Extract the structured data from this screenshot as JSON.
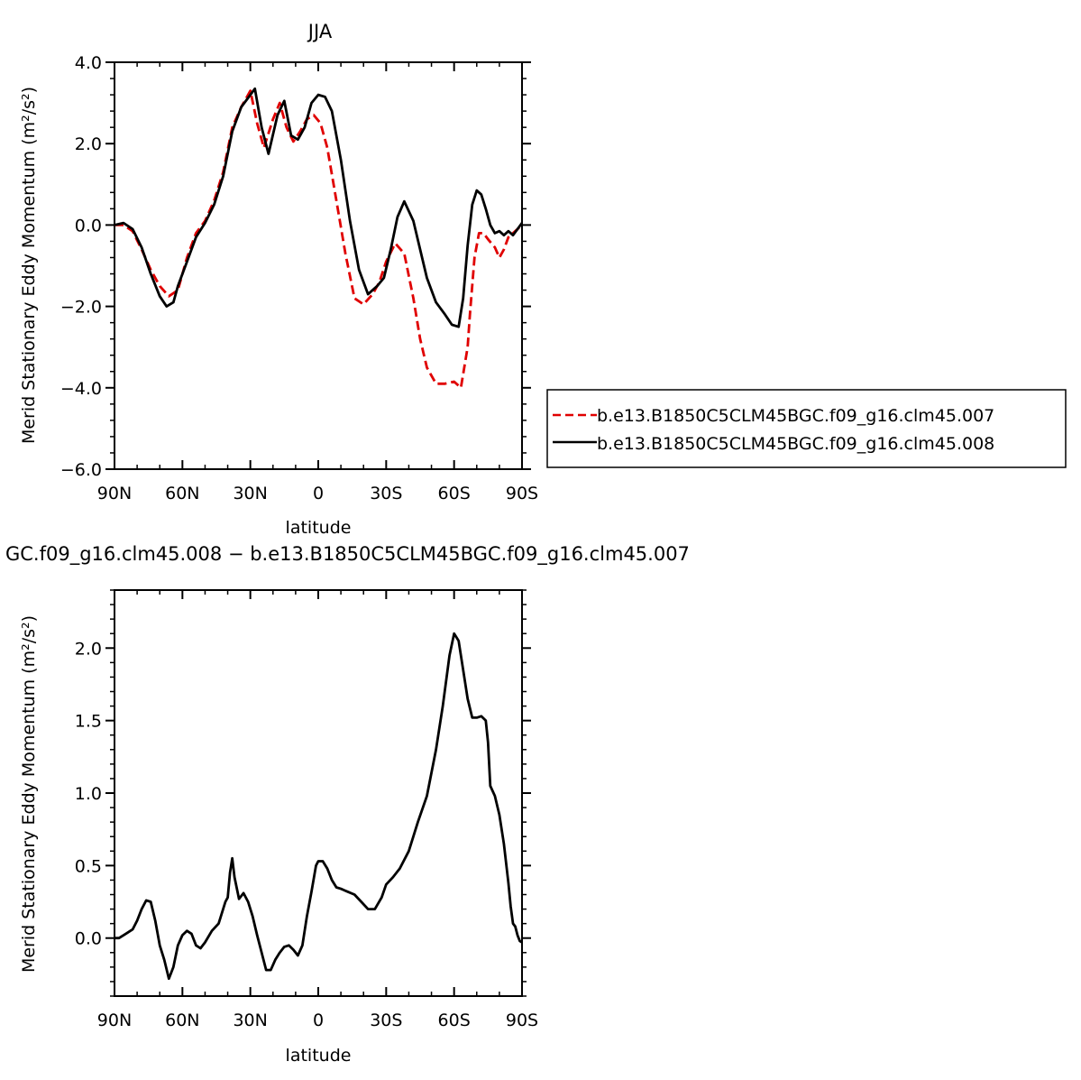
{
  "chart_data": [
    {
      "type": "line",
      "title": "JJA",
      "xlabel": "latitude",
      "ylabel": "Merid Stationary Eddy Momentum",
      "ylabel_unit": "(m²/s²)",
      "xlim": [
        90,
        -90
      ],
      "ylim": [
        -6.0,
        4.0
      ],
      "x_ticks": [
        90,
        60,
        30,
        0,
        -30,
        -60,
        -90
      ],
      "x_tick_labels": [
        "90N",
        "60N",
        "30N",
        "0",
        "30S",
        "60S",
        "90S"
      ],
      "y_ticks": [
        -6.0,
        -4.0,
        -2.0,
        0.0,
        2.0,
        4.0
      ],
      "y_tick_labels": [
        "−6.0",
        "−4.0",
        "−2.0",
        "0.0",
        "2.0",
        "4.0"
      ],
      "grid": false,
      "legend_position": "right",
      "series": [
        {
          "name": "b.e13.B1850C5CLM45BGC.f09_g16.clm45.007",
          "color": "#e00000",
          "style": "dashed",
          "x": [
            90,
            86,
            82,
            78,
            74,
            70,
            66,
            62,
            58,
            54,
            50,
            46,
            42,
            38,
            34,
            30,
            27,
            24,
            20,
            17,
            14,
            11,
            8,
            5,
            2,
            -1,
            -4,
            -8,
            -12,
            -16,
            -20,
            -24,
            -27,
            -30,
            -34,
            -38,
            -42,
            -45,
            -48,
            -52,
            -56,
            -60,
            -63,
            -66,
            -67,
            -69,
            -71,
            -73,
            -75,
            -78,
            -80,
            -82,
            -84,
            -86,
            -88,
            -90
          ],
          "y": [
            0.0,
            0.0,
            -0.15,
            -0.6,
            -1.1,
            -1.5,
            -1.75,
            -1.6,
            -0.8,
            -0.2,
            0.1,
            0.6,
            1.3,
            2.4,
            2.9,
            3.3,
            2.5,
            1.9,
            2.6,
            3.0,
            2.4,
            2.05,
            2.3,
            2.6,
            2.7,
            2.5,
            1.9,
            0.6,
            -0.7,
            -1.8,
            -1.95,
            -1.7,
            -1.4,
            -0.9,
            -0.45,
            -0.7,
            -1.8,
            -2.8,
            -3.5,
            -3.9,
            -3.9,
            -3.85,
            -4.0,
            -3.0,
            -2.2,
            -0.8,
            -0.2,
            -0.2,
            -0.35,
            -0.55,
            -0.8,
            -0.6,
            -0.3,
            -0.2,
            -0.1,
            0.0
          ]
        },
        {
          "name": "b.e13.B1850C5CLM45BGC.f09_g16.clm45.008",
          "color": "#000000",
          "style": "solid",
          "x": [
            90,
            86,
            82,
            78,
            74,
            70,
            67,
            64,
            62,
            58,
            54,
            50,
            46,
            42,
            38,
            34,
            30,
            28,
            25,
            22,
            18,
            15,
            12,
            9,
            6,
            3,
            0,
            -3,
            -6,
            -10,
            -14,
            -18,
            -22,
            -26,
            -29,
            -32,
            -35,
            -38,
            -42,
            -45,
            -48,
            -52,
            -56,
            -59,
            -62,
            -64,
            -66,
            -68,
            -70,
            -72,
            -74,
            -76,
            -78,
            -80,
            -82,
            -84,
            -86,
            -88,
            -90
          ],
          "y": [
            0.0,
            0.05,
            -0.1,
            -0.55,
            -1.2,
            -1.75,
            -2.0,
            -1.9,
            -1.5,
            -0.9,
            -0.3,
            0.05,
            0.5,
            1.2,
            2.3,
            2.9,
            3.2,
            3.35,
            2.4,
            1.75,
            2.7,
            3.05,
            2.2,
            2.1,
            2.4,
            3.0,
            3.2,
            3.15,
            2.8,
            1.6,
            0.1,
            -1.1,
            -1.7,
            -1.5,
            -1.3,
            -0.6,
            0.2,
            0.58,
            0.1,
            -0.6,
            -1.3,
            -1.9,
            -2.2,
            -2.45,
            -2.5,
            -1.8,
            -0.5,
            0.5,
            0.85,
            0.75,
            0.4,
            0.0,
            -0.2,
            -0.15,
            -0.25,
            -0.15,
            -0.25,
            -0.1,
            0.05
          ]
        }
      ]
    },
    {
      "type": "line",
      "title": "GC.f09_g16.clm45.008 − b.e13.B1850C5CLM45BGC.f09_g16.clm45.007",
      "xlabel": "latitude",
      "ylabel": "Merid Stationary Eddy Momentum",
      "ylabel_unit": "(m²/s²)",
      "xlim": [
        90,
        -90
      ],
      "ylim": [
        -0.4,
        2.4
      ],
      "x_ticks": [
        90,
        60,
        30,
        0,
        -30,
        -60,
        -90
      ],
      "x_tick_labels": [
        "90N",
        "60N",
        "30N",
        "0",
        "30S",
        "60S",
        "90S"
      ],
      "y_ticks": [
        0.0,
        0.5,
        1.0,
        1.5,
        2.0
      ],
      "y_tick_labels": [
        "0.0",
        "0.5",
        "1.0",
        "1.5",
        "2.0"
      ],
      "grid": false,
      "series": [
        {
          "name": "",
          "color": "#000000",
          "style": "solid",
          "x": [
            90,
            88,
            85,
            82,
            80,
            78,
            76,
            74,
            72,
            70,
            68,
            66,
            64,
            62,
            60,
            58,
            56,
            54,
            52,
            50,
            47,
            44,
            41,
            40,
            39,
            38,
            37,
            35,
            33,
            31,
            29,
            27,
            25,
            23,
            21,
            19,
            17,
            15,
            13,
            11,
            9,
            7,
            5,
            3,
            1,
            0,
            -2,
            -4,
            -6,
            -8,
            -10,
            -13,
            -16,
            -19,
            -22,
            -25,
            -28,
            -30,
            -33,
            -36,
            -40,
            -44,
            -48,
            -52,
            -55,
            -58,
            -60,
            -62,
            -64,
            -66,
            -68,
            -70,
            -72,
            -74,
            -75,
            -76,
            -78,
            -80,
            -82,
            -84,
            -85,
            -86,
            -87,
            -88,
            -89,
            -90
          ],
          "y": [
            0.0,
            0.0,
            0.03,
            0.06,
            0.12,
            0.2,
            0.26,
            0.25,
            0.12,
            -0.05,
            -0.15,
            -0.28,
            -0.2,
            -0.05,
            0.02,
            0.05,
            0.03,
            -0.05,
            -0.07,
            -0.03,
            0.05,
            0.1,
            0.25,
            0.28,
            0.45,
            0.55,
            0.42,
            0.27,
            0.31,
            0.25,
            0.15,
            0.02,
            -0.1,
            -0.22,
            -0.22,
            -0.15,
            -0.1,
            -0.06,
            -0.05,
            -0.08,
            -0.12,
            -0.05,
            0.15,
            0.32,
            0.5,
            0.53,
            0.53,
            0.48,
            0.4,
            0.35,
            0.34,
            0.32,
            0.3,
            0.25,
            0.2,
            0.2,
            0.28,
            0.37,
            0.42,
            0.48,
            0.6,
            0.8,
            0.98,
            1.3,
            1.6,
            1.95,
            2.1,
            2.05,
            1.85,
            1.65,
            1.52,
            1.52,
            1.53,
            1.5,
            1.35,
            1.05,
            0.98,
            0.85,
            0.65,
            0.38,
            0.22,
            0.1,
            0.08,
            0.02,
            -0.02,
            -0.03
          ]
        }
      ]
    }
  ]
}
